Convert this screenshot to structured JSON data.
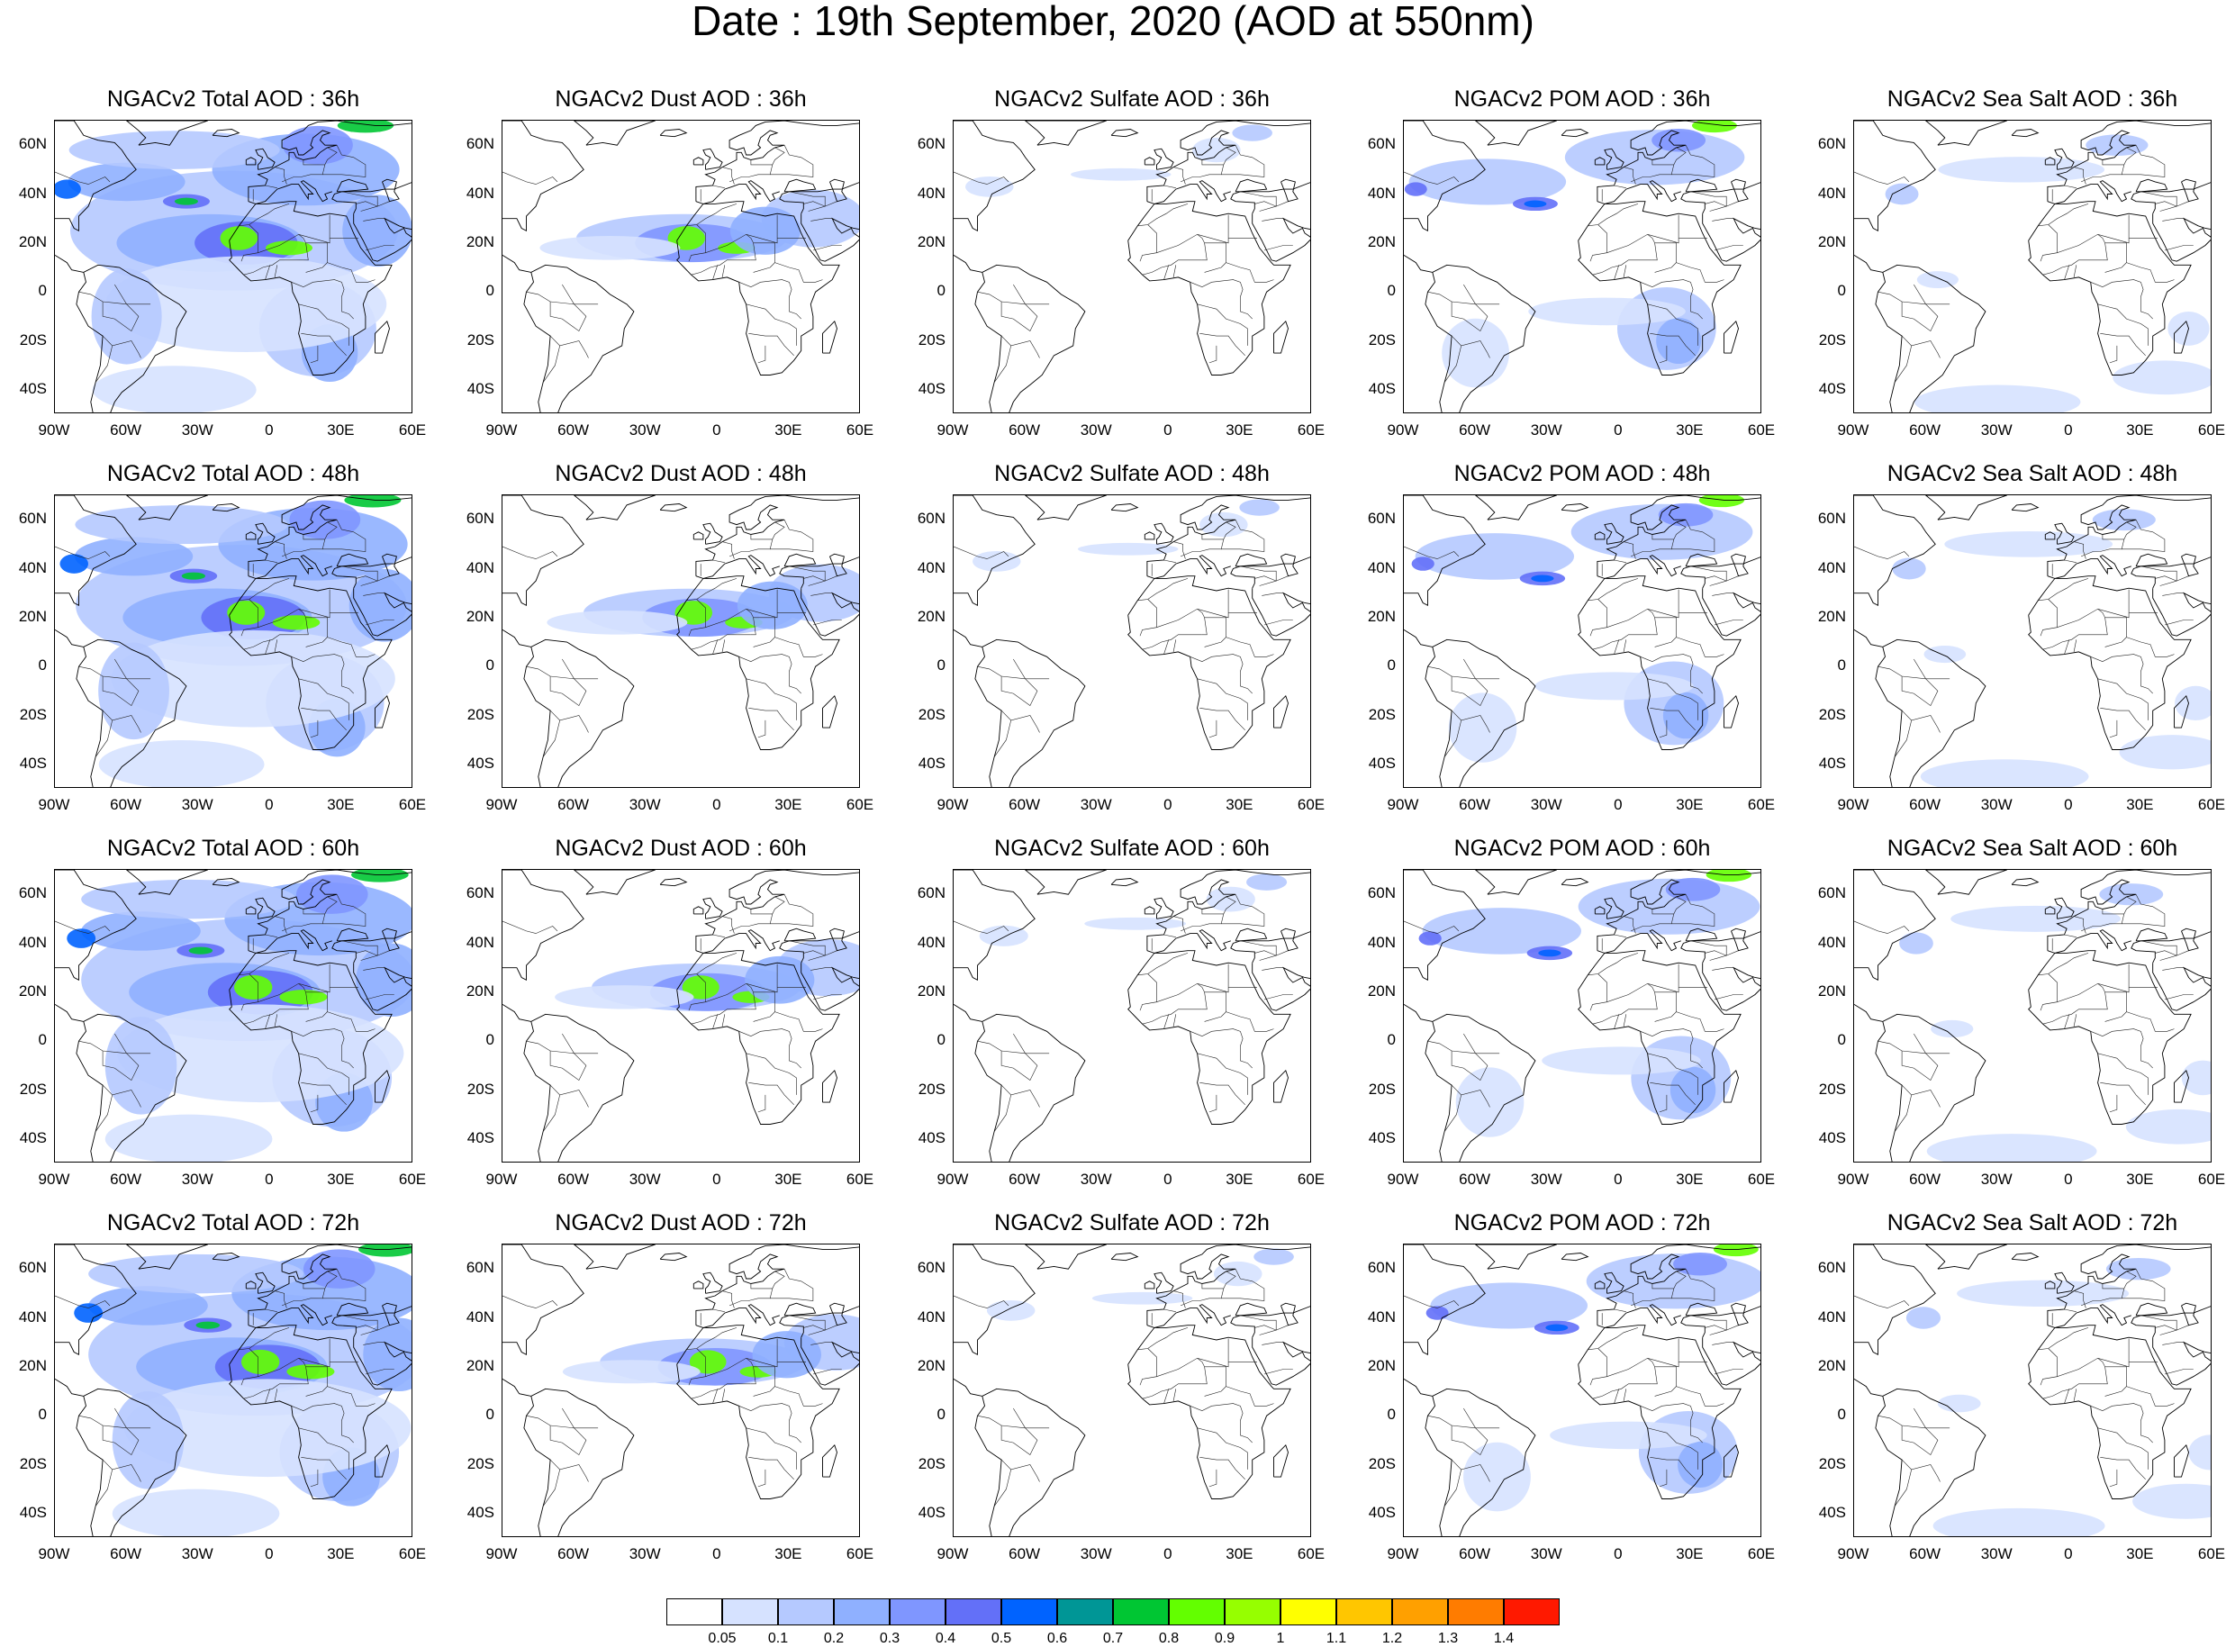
{
  "title": "Date : 19th September, 2020 (AOD at 550nm)",
  "rows": [
    "36h",
    "48h",
    "60h",
    "72h"
  ],
  "columns": [
    {
      "key": "total",
      "label": "NGACv2 Total AOD"
    },
    {
      "key": "dust",
      "label": "NGACv2 Dust AOD"
    },
    {
      "key": "sulfate",
      "label": "NGACv2 Sulfate AOD"
    },
    {
      "key": "pom",
      "label": "NGACv2 POM AOD"
    },
    {
      "key": "seasalt",
      "label": "NGACv2 Sea Salt AOD"
    }
  ],
  "panel_titles": [
    [
      "NGACv2 Total AOD : 36h",
      "NGACv2 Dust AOD : 36h",
      "NGACv2 Sulfate AOD : 36h",
      "NGACv2 POM AOD : 36h",
      "NGACv2 Sea Salt AOD : 36h"
    ],
    [
      "NGACv2 Total AOD : 48h",
      "NGACv2 Dust AOD : 48h",
      "NGACv2 Sulfate AOD : 48h",
      "NGACv2 POM AOD : 48h",
      "NGACv2 Sea Salt AOD : 48h"
    ],
    [
      "NGACv2 Total AOD : 60h",
      "NGACv2 Dust AOD : 60h",
      "NGACv2 Sulfate AOD : 60h",
      "NGACv2 POM AOD : 60h",
      "NGACv2 Sea Salt AOD : 60h"
    ],
    [
      "NGACv2 Total AOD : 72h",
      "NGACv2 Dust AOD : 72h",
      "NGACv2 Sulfate AOD : 72h",
      "NGACv2 POM AOD : 72h",
      "NGACv2 Sea Salt  AOD : 72h"
    ]
  ],
  "lon_ticks": [
    "90W",
    "60W",
    "30W",
    "0",
    "30E",
    "60E"
  ],
  "lat_ticks": [
    "60N",
    "40N",
    "20N",
    "0",
    "20S",
    "40S"
  ],
  "lon_range": [
    -90,
    60
  ],
  "lat_range": [
    -50,
    70
  ],
  "colorbar": {
    "levels": [
      "0.05",
      "0.1",
      "0.2",
      "0.3",
      "0.4",
      "0.5",
      "0.6",
      "0.7",
      "0.8",
      "0.9",
      "1",
      "1.1",
      "1.2",
      "1.3",
      "1.4"
    ],
    "colors": [
      "#ffffff",
      "#d6e2ff",
      "#b5c9ff",
      "#8fb0ff",
      "#7f96ff",
      "#6370f8",
      "#0063ff",
      "#009696",
      "#00c633",
      "#63ff00",
      "#96ff00",
      "#ffff00",
      "#ffc600",
      "#ffa000",
      "#ff7c00",
      "#ff1900"
    ]
  },
  "intensity": {
    "total": [
      0.9,
      0.95,
      1.0,
      1.0
    ],
    "dust": [
      0.9,
      0.9,
      0.85,
      0.8
    ],
    "sulfate": [
      0.2,
      0.2,
      0.25,
      0.2
    ],
    "pom": [
      0.7,
      0.75,
      0.75,
      0.7
    ],
    "seasalt": [
      0.35,
      0.4,
      0.45,
      0.5
    ]
  }
}
